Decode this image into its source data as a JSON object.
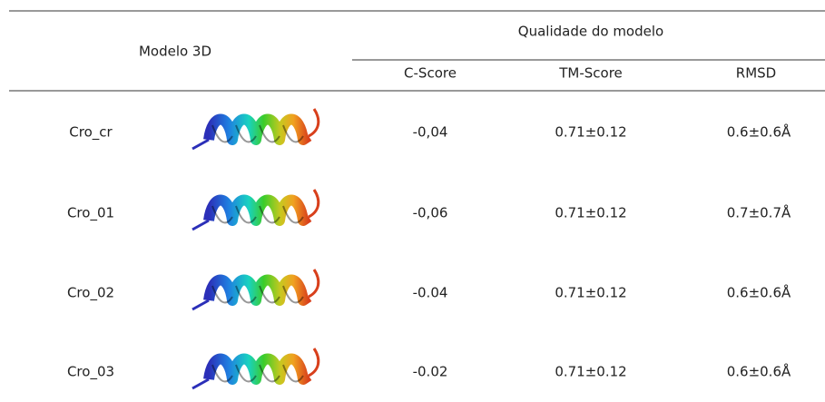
{
  "header": {
    "model_label": "Modelo 3D",
    "quality_label": "Qualidade do modelo",
    "columns": [
      "C-Score",
      "TM-Score",
      "RMSD"
    ]
  },
  "rows": [
    {
      "name": "Cro_cr",
      "c_score": "-0,04",
      "tm_score": "0.71±0.12",
      "rmsd": "0.6±0.6Å"
    },
    {
      "name": "Cro_01",
      "c_score": "-0,06",
      "tm_score": "0.71±0.12",
      "rmsd": "0.7±0.7Å"
    },
    {
      "name": "Cro_02",
      "c_score": "-0.04",
      "tm_score": "0.71±0.12",
      "rmsd": "0.6±0.6Å"
    },
    {
      "name": "Cro_03",
      "c_score": "-0.02",
      "tm_score": "0.71±0.12",
      "rmsd": "0.6±0.6Å"
    }
  ]
}
